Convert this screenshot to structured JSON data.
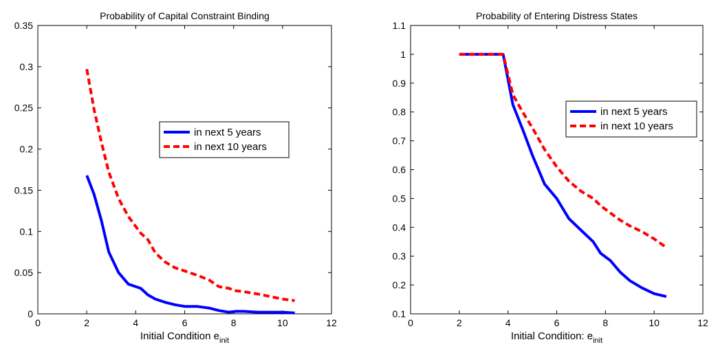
{
  "chart_data": [
    {
      "type": "line",
      "title": "Probability of Capital Constraint Binding",
      "xlabel": "Initial Condition e",
      "xlabel_sub": "init",
      "ylabel": "",
      "xlim": [
        0,
        12
      ],
      "ylim": [
        0,
        0.35
      ],
      "xticks": [
        "0",
        "2",
        "4",
        "6",
        "8",
        "10",
        "12"
      ],
      "yticks": [
        "0",
        "0.05",
        "0.1",
        "0.15",
        "0.2",
        "0.25",
        "0.3",
        "0.35"
      ],
      "grid": false,
      "legend": "center-right",
      "x": [
        2,
        2.3,
        2.6,
        2.9,
        3.3,
        3.7,
        4.2,
        4.5,
        4.8,
        5.2,
        5.6,
        6,
        6.5,
        7,
        7.4,
        7.8,
        8.1,
        8.4,
        9,
        9.5,
        10,
        10.5
      ],
      "series": [
        {
          "name": "in next 5 years",
          "color": "#0000ff",
          "style": "solid",
          "values": [
            0.168,
            0.145,
            0.113,
            0.075,
            0.05,
            0.036,
            0.031,
            0.023,
            0.018,
            0.014,
            0.011,
            0.009,
            0.009,
            0.007,
            0.004,
            0.002,
            0.003,
            0.003,
            0.002,
            0.002,
            0.002,
            0.001
          ]
        },
        {
          "name": "in next 10 years",
          "color": "#ff0000",
          "style": "dashed",
          "values": [
            0.297,
            0.248,
            0.208,
            0.172,
            0.14,
            0.118,
            0.098,
            0.09,
            0.074,
            0.063,
            0.056,
            0.052,
            0.047,
            0.041,
            0.033,
            0.031,
            0.028,
            0.027,
            0.024,
            0.021,
            0.018,
            0.016
          ]
        }
      ]
    },
    {
      "type": "line",
      "title": "Probability of Entering Distress States",
      "xlabel": "Initial Condition: e",
      "xlabel_sub": "init",
      "ylabel": "",
      "xlim": [
        0,
        12
      ],
      "ylim": [
        0.1,
        1.1
      ],
      "xticks": [
        "0",
        "2",
        "4",
        "6",
        "8",
        "10",
        "12"
      ],
      "yticks": [
        "0.1",
        "0.2",
        "0.3",
        "0.4",
        "0.5",
        "0.6",
        "0.7",
        "0.8",
        "0.9",
        "1",
        "1.1"
      ],
      "grid": false,
      "legend": "top-right",
      "x": [
        2,
        2.5,
        3,
        3.5,
        3.8,
        4.2,
        4.6,
        5,
        5.5,
        6,
        6.5,
        7,
        7.5,
        7.8,
        8.2,
        8.6,
        9,
        9.5,
        10,
        10.5
      ],
      "series": [
        {
          "name": "in next 5 years",
          "color": "#0000ff",
          "style": "solid",
          "values": [
            1,
            1,
            1,
            1,
            1,
            0.825,
            0.74,
            0.65,
            0.55,
            0.5,
            0.43,
            0.39,
            0.35,
            0.31,
            0.285,
            0.245,
            0.215,
            0.19,
            0.17,
            0.16
          ]
        },
        {
          "name": "in next 10 years",
          "color": "#ff0000",
          "style": "dashed",
          "values": [
            1,
            1,
            1,
            1,
            1,
            0.86,
            0.8,
            0.745,
            0.67,
            0.61,
            0.56,
            0.525,
            0.5,
            0.475,
            0.45,
            0.425,
            0.405,
            0.385,
            0.36,
            0.33
          ]
        }
      ]
    }
  ]
}
